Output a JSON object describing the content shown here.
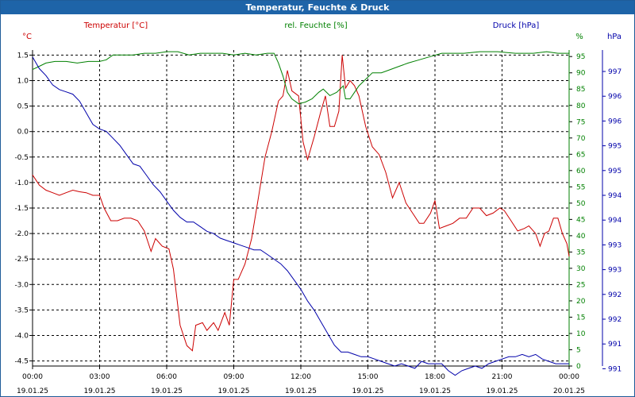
{
  "window": {
    "title": "Temperatur, Feuchte & Druck"
  },
  "chart_data": {
    "type": "line",
    "legend": {
      "temperature": "Temperatur [°C]",
      "humidity": "rel. Feuchte [%]",
      "pressure": "Druck [hPa]"
    },
    "axis_units": {
      "temperature": "°C",
      "humidity": "%",
      "pressure": "hPa"
    },
    "colors": {
      "temperature": "#cc0000",
      "humidity": "#008000",
      "pressure": "#0000aa",
      "grid": "#000000",
      "axes": "#000000"
    },
    "grid": true,
    "x_ticks": [
      {
        "time": "00:00",
        "date": "19.01.25"
      },
      {
        "time": "03:00",
        "date": "19.01.25"
      },
      {
        "time": "06:00",
        "date": "19.01.25"
      },
      {
        "time": "09:00",
        "date": "19.01.25"
      },
      {
        "time": "12:00",
        "date": "19.01.25"
      },
      {
        "time": "15:00",
        "date": "19.01.25"
      },
      {
        "time": "18:00",
        "date": "19.01.25"
      },
      {
        "time": "21:00",
        "date": "19.01.25"
      },
      {
        "time": "00:00",
        "date": "20.01.25"
      }
    ],
    "x_range_hours": [
      0,
      24
    ],
    "temperature_axis": {
      "range": [
        -4.6,
        1.6
      ],
      "ticks": [
        "1.5",
        "1.0",
        "0.5",
        "0.0",
        "-0.5",
        "-1.0",
        "-1.5",
        "-2.0",
        "-2.5",
        "-3.0",
        "-3.5",
        "-4.0",
        "-4.5"
      ]
    },
    "humidity_axis": {
      "range": [
        0,
        97
      ],
      "ticks": [
        "95",
        "90",
        "85",
        "80",
        "75",
        "70",
        "65",
        "60",
        "55",
        "50",
        "45",
        "40",
        "35",
        "30",
        "25",
        "20",
        "15",
        "10",
        "5",
        "0"
      ]
    },
    "pressure_axis": {
      "range": [
        990.65,
        997.45
      ],
      "ticks": [
        "997",
        "996",
        "996",
        "995",
        "995",
        "994",
        "994",
        "993",
        "993",
        "992",
        "992",
        "991",
        "991"
      ]
    },
    "series": [
      {
        "name": "Temperatur [°C]",
        "axis": "temperature",
        "points": [
          [
            0.0,
            -0.85
          ],
          [
            0.3,
            -1.05
          ],
          [
            0.6,
            -1.15
          ],
          [
            0.9,
            -1.2
          ],
          [
            1.2,
            -1.25
          ],
          [
            1.5,
            -1.2
          ],
          [
            1.8,
            -1.15
          ],
          [
            2.1,
            -1.18
          ],
          [
            2.4,
            -1.2
          ],
          [
            2.7,
            -1.25
          ],
          [
            3.0,
            -1.25
          ],
          [
            3.2,
            -1.5
          ],
          [
            3.5,
            -1.75
          ],
          [
            3.8,
            -1.75
          ],
          [
            4.1,
            -1.7
          ],
          [
            4.4,
            -1.7
          ],
          [
            4.7,
            -1.75
          ],
          [
            5.0,
            -1.95
          ],
          [
            5.3,
            -2.35
          ],
          [
            5.5,
            -2.1
          ],
          [
            5.8,
            -2.25
          ],
          [
            6.1,
            -2.3
          ],
          [
            6.3,
            -2.7
          ],
          [
            6.6,
            -3.8
          ],
          [
            6.9,
            -4.2
          ],
          [
            7.15,
            -4.3
          ],
          [
            7.3,
            -3.8
          ],
          [
            7.6,
            -3.75
          ],
          [
            7.8,
            -3.9
          ],
          [
            8.1,
            -3.75
          ],
          [
            8.3,
            -3.9
          ],
          [
            8.6,
            -3.55
          ],
          [
            8.8,
            -3.8
          ],
          [
            9.0,
            -2.9
          ],
          [
            9.2,
            -2.9
          ],
          [
            9.5,
            -2.6
          ],
          [
            9.8,
            -2.1
          ],
          [
            10.1,
            -1.3
          ],
          [
            10.4,
            -0.5
          ],
          [
            10.7,
            0.0
          ],
          [
            11.0,
            0.6
          ],
          [
            11.2,
            0.7
          ],
          [
            11.4,
            1.2
          ],
          [
            11.6,
            0.8
          ],
          [
            11.9,
            0.7
          ],
          [
            12.1,
            -0.2
          ],
          [
            12.3,
            -0.55
          ],
          [
            12.6,
            -0.1
          ],
          [
            12.9,
            0.4
          ],
          [
            13.1,
            0.7
          ],
          [
            13.3,
            0.1
          ],
          [
            13.5,
            0.1
          ],
          [
            13.7,
            0.4
          ],
          [
            13.85,
            1.5
          ],
          [
            14.0,
            0.85
          ],
          [
            14.2,
            1.0
          ],
          [
            14.4,
            0.9
          ],
          [
            14.6,
            0.7
          ],
          [
            14.9,
            0.1
          ],
          [
            15.2,
            -0.3
          ],
          [
            15.5,
            -0.45
          ],
          [
            15.8,
            -0.8
          ],
          [
            16.1,
            -1.3
          ],
          [
            16.4,
            -1.0
          ],
          [
            16.7,
            -1.4
          ],
          [
            17.0,
            -1.6
          ],
          [
            17.3,
            -1.8
          ],
          [
            17.5,
            -1.8
          ],
          [
            17.8,
            -1.6
          ],
          [
            18.0,
            -1.35
          ],
          [
            18.2,
            -1.9
          ],
          [
            18.5,
            -1.85
          ],
          [
            18.8,
            -1.8
          ],
          [
            19.1,
            -1.7
          ],
          [
            19.4,
            -1.7
          ],
          [
            19.7,
            -1.5
          ],
          [
            20.0,
            -1.5
          ],
          [
            20.3,
            -1.65
          ],
          [
            20.6,
            -1.6
          ],
          [
            20.9,
            -1.5
          ],
          [
            21.1,
            -1.55
          ],
          [
            21.4,
            -1.75
          ],
          [
            21.7,
            -1.95
          ],
          [
            22.0,
            -1.9
          ],
          [
            22.2,
            -1.85
          ],
          [
            22.5,
            -2.0
          ],
          [
            22.7,
            -2.25
          ],
          [
            22.9,
            -2.0
          ],
          [
            23.1,
            -1.95
          ],
          [
            23.3,
            -1.7
          ],
          [
            23.5,
            -1.7
          ],
          [
            23.7,
            -2.0
          ],
          [
            23.9,
            -2.2
          ],
          [
            24.0,
            -2.45
          ]
        ]
      },
      {
        "name": "rel. Feuchte [%]",
        "axis": "humidity",
        "points": [
          [
            0.0,
            91
          ],
          [
            0.3,
            92
          ],
          [
            0.6,
            93
          ],
          [
            1.0,
            93.5
          ],
          [
            1.5,
            93.5
          ],
          [
            2.0,
            93
          ],
          [
            2.5,
            93.5
          ],
          [
            3.0,
            93.5
          ],
          [
            3.3,
            94
          ],
          [
            3.6,
            95.5
          ],
          [
            4.0,
            95.5
          ],
          [
            4.5,
            95.5
          ],
          [
            5.0,
            96
          ],
          [
            5.5,
            96
          ],
          [
            6.0,
            96.5
          ],
          [
            6.5,
            96.5
          ],
          [
            7.0,
            95.5
          ],
          [
            7.5,
            96
          ],
          [
            8.0,
            96
          ],
          [
            8.5,
            96
          ],
          [
            9.0,
            95.5
          ],
          [
            9.5,
            96
          ],
          [
            10.0,
            95.5
          ],
          [
            10.5,
            96
          ],
          [
            10.8,
            96
          ],
          [
            11.0,
            93
          ],
          [
            11.2,
            89
          ],
          [
            11.4,
            84
          ],
          [
            11.6,
            82
          ],
          [
            11.9,
            80.5
          ],
          [
            12.2,
            81
          ],
          [
            12.5,
            82
          ],
          [
            12.8,
            84
          ],
          [
            13.0,
            85
          ],
          [
            13.3,
            83
          ],
          [
            13.6,
            84
          ],
          [
            13.9,
            86
          ],
          [
            14.0,
            82
          ],
          [
            14.2,
            82
          ],
          [
            14.4,
            84
          ],
          [
            14.6,
            86
          ],
          [
            14.9,
            88
          ],
          [
            15.2,
            90
          ],
          [
            15.6,
            90
          ],
          [
            16.0,
            91
          ],
          [
            16.4,
            92
          ],
          [
            16.8,
            93
          ],
          [
            17.3,
            94
          ],
          [
            17.8,
            95
          ],
          [
            18.3,
            96
          ],
          [
            18.8,
            96
          ],
          [
            19.3,
            96
          ],
          [
            20.0,
            96.5
          ],
          [
            20.8,
            96.5
          ],
          [
            21.6,
            96
          ],
          [
            22.4,
            96
          ],
          [
            23.0,
            96.5
          ],
          [
            23.5,
            96
          ],
          [
            24.0,
            96
          ]
        ]
      },
      {
        "name": "Druck [hPa]",
        "axis": "pressure",
        "points": [
          [
            0.0,
            997.3
          ],
          [
            0.3,
            997.05
          ],
          [
            0.6,
            996.9
          ],
          [
            0.9,
            996.7
          ],
          [
            1.2,
            996.6
          ],
          [
            1.5,
            996.55
          ],
          [
            1.8,
            996.5
          ],
          [
            2.1,
            996.35
          ],
          [
            2.4,
            996.1
          ],
          [
            2.7,
            995.85
          ],
          [
            3.0,
            995.75
          ],
          [
            3.3,
            995.7
          ],
          [
            3.6,
            995.55
          ],
          [
            3.9,
            995.4
          ],
          [
            4.2,
            995.2
          ],
          [
            4.5,
            995.0
          ],
          [
            4.8,
            994.95
          ],
          [
            5.1,
            994.75
          ],
          [
            5.4,
            994.55
          ],
          [
            5.7,
            994.4
          ],
          [
            6.0,
            994.2
          ],
          [
            6.3,
            994.0
          ],
          [
            6.6,
            993.85
          ],
          [
            6.9,
            993.75
          ],
          [
            7.2,
            993.75
          ],
          [
            7.5,
            993.65
          ],
          [
            7.8,
            993.55
          ],
          [
            8.1,
            993.5
          ],
          [
            8.4,
            993.4
          ],
          [
            8.7,
            993.35
          ],
          [
            9.0,
            993.3
          ],
          [
            9.3,
            993.25
          ],
          [
            9.6,
            993.2
          ],
          [
            9.9,
            993.15
          ],
          [
            10.2,
            993.15
          ],
          [
            10.5,
            993.05
          ],
          [
            10.8,
            992.95
          ],
          [
            11.1,
            992.85
          ],
          [
            11.4,
            992.7
          ],
          [
            11.7,
            992.5
          ],
          [
            12.0,
            992.3
          ],
          [
            12.3,
            992.05
          ],
          [
            12.6,
            991.85
          ],
          [
            12.9,
            991.6
          ],
          [
            13.2,
            991.35
          ],
          [
            13.5,
            991.1
          ],
          [
            13.8,
            990.95
          ],
          [
            14.1,
            990.95
          ],
          [
            14.4,
            990.9
          ],
          [
            14.7,
            990.85
          ],
          [
            15.0,
            990.85
          ],
          [
            15.3,
            990.8
          ],
          [
            15.6,
            990.75
          ],
          [
            15.9,
            990.7
          ],
          [
            16.2,
            990.65
          ],
          [
            16.5,
            990.7
          ],
          [
            16.8,
            990.65
          ],
          [
            17.1,
            990.6
          ],
          [
            17.4,
            990.75
          ],
          [
            17.7,
            990.7
          ],
          [
            18.0,
            990.7
          ],
          [
            18.3,
            990.7
          ],
          [
            18.6,
            990.55
          ],
          [
            18.9,
            990.45
          ],
          [
            19.2,
            990.55
          ],
          [
            19.5,
            990.6
          ],
          [
            19.8,
            990.65
          ],
          [
            20.1,
            990.6
          ],
          [
            20.4,
            990.7
          ],
          [
            20.7,
            990.75
          ],
          [
            21.0,
            990.8
          ],
          [
            21.3,
            990.85
          ],
          [
            21.6,
            990.85
          ],
          [
            21.9,
            990.9
          ],
          [
            22.2,
            990.85
          ],
          [
            22.5,
            990.9
          ],
          [
            22.8,
            990.8
          ],
          [
            23.1,
            990.75
          ],
          [
            23.4,
            990.7
          ],
          [
            23.7,
            990.7
          ],
          [
            24.0,
            990.7
          ]
        ]
      }
    ]
  }
}
